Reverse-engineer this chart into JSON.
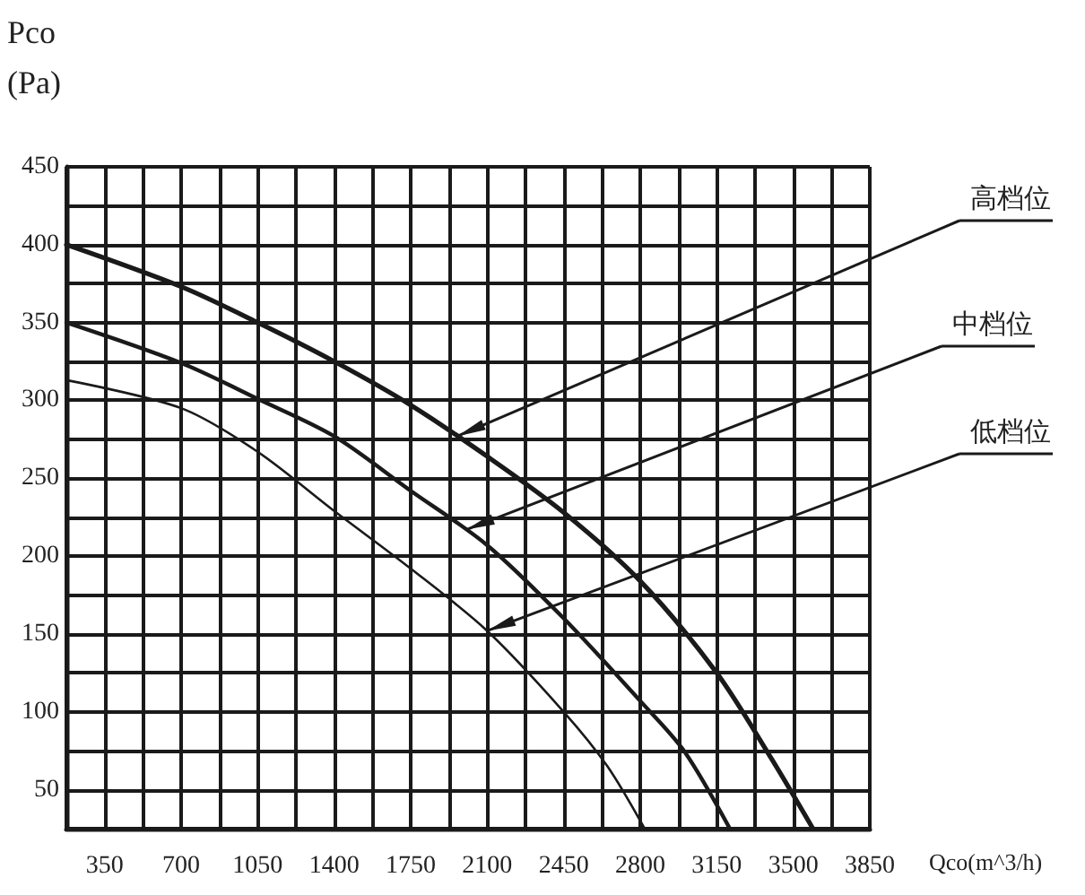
{
  "chart_data": {
    "type": "line",
    "xlabel": "Qco(m^3/h)",
    "ylabel": "Pco\n(Pa)",
    "xlim": [
      175,
      3850
    ],
    "ylim": [
      25,
      450
    ],
    "xticks": [
      {
        "value": 175,
        "label": null
      },
      350,
      {
        "value": 525,
        "label": null
      },
      700,
      {
        "value": 875,
        "label": null
      },
      1050,
      {
        "value": 1225,
        "label": null
      },
      1400,
      {
        "value": 1575,
        "label": null
      },
      1750,
      {
        "value": 1925,
        "label": null
      },
      2100,
      {
        "value": 2275,
        "label": null
      },
      2450,
      {
        "value": 2625,
        "label": null
      },
      2800,
      {
        "value": 2975,
        "label": null
      },
      3150,
      {
        "value": 3325,
        "label": null
      },
      3500,
      {
        "value": 3675,
        "label": null
      },
      3850
    ],
    "yticks": [
      {
        "value": 25,
        "label": null
      },
      50,
      {
        "value": 75,
        "label": null
      },
      100,
      {
        "value": 125,
        "label": null
      },
      150,
      {
        "value": 175,
        "label": null
      },
      200,
      {
        "value": 225,
        "label": null
      },
      250,
      {
        "value": 275,
        "label": null
      },
      300,
      {
        "value": 325,
        "label": null
      },
      350,
      {
        "value": 375,
        "label": null
      },
      400,
      {
        "value": 425,
        "label": null
      },
      450
    ],
    "grid": true,
    "marker": "none",
    "line_style": "solid",
    "series": [
      {
        "color": "#1a1a1a",
        "x": [
          175,
          700,
          1050,
          1400,
          1750,
          2100,
          2450,
          2800,
          3150,
          3400,
          3590
        ],
        "values": [
          400,
          373,
          350,
          325,
          297,
          264,
          228,
          184,
          125,
          70,
          25
        ]
      },
      {
        "color": "#1a1a1a",
        "x": [
          175,
          700,
          1050,
          1400,
          1750,
          2100,
          2450,
          2800,
          3000,
          3210
        ],
        "values": [
          350,
          324,
          301,
          277,
          242,
          207,
          160,
          107,
          75,
          25
        ]
      },
      {
        "color": "#1a1a1a",
        "x": [
          175,
          700,
          1050,
          1400,
          1750,
          2100,
          2450,
          2650,
          2820
        ],
        "values": [
          313,
          295,
          267,
          229,
          192,
          152,
          100,
          65,
          25
        ]
      }
    ],
    "annotations": [
      {
        "text": "高档位",
        "x": 1963,
        "y": 277
      },
      {
        "text": "中档位",
        "x": 2004,
        "y": 217
      },
      {
        "text": "低档位",
        "x": 2100,
        "y": 152
      }
    ]
  }
}
